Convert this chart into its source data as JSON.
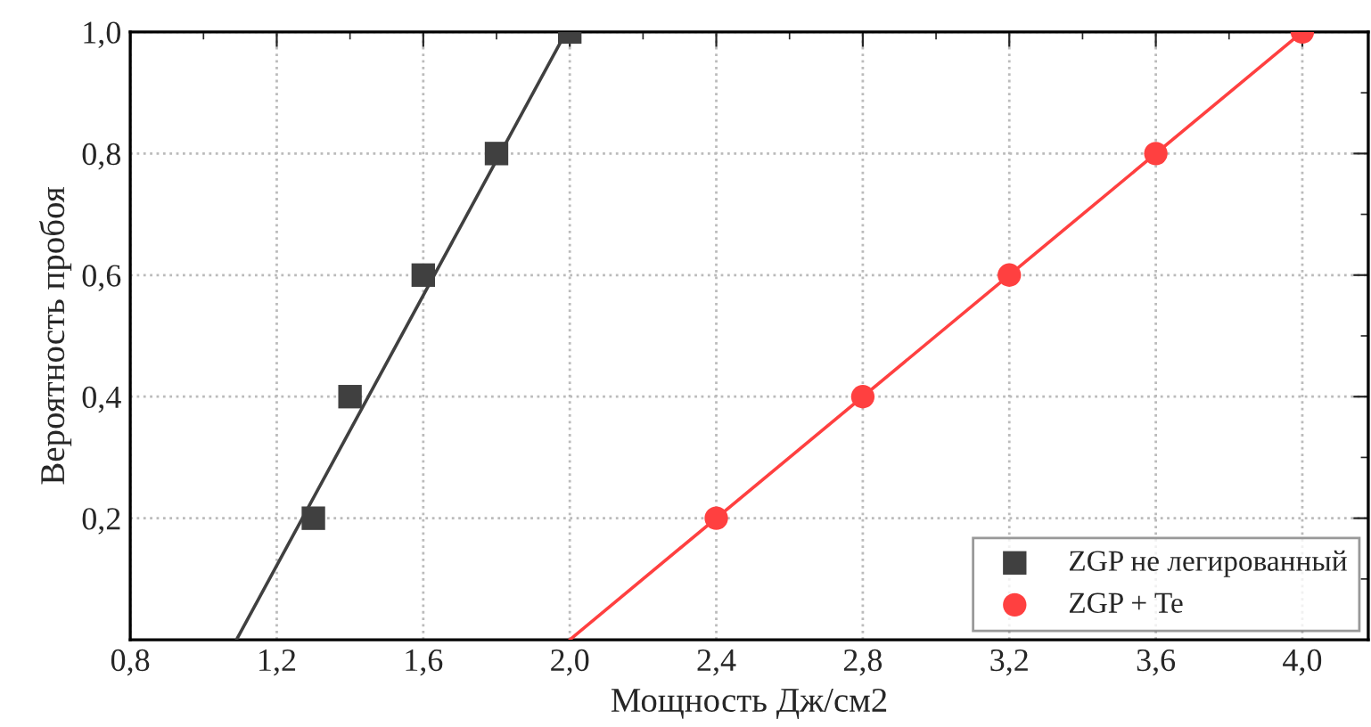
{
  "chart_data": {
    "type": "scatter",
    "xlabel": "Мощность Дж/см2",
    "ylabel": "Вероятность пробоя",
    "xlim": [
      0.8,
      4.18
    ],
    "ylim": [
      0,
      1.0
    ],
    "xticks": [
      {
        "value": 0.8,
        "label": "0,8"
      },
      {
        "value": 1.2,
        "label": "1,2"
      },
      {
        "value": 1.6,
        "label": "1,6"
      },
      {
        "value": 2.0,
        "label": "2,0"
      },
      {
        "value": 2.4,
        "label": "2,4"
      },
      {
        "value": 2.8,
        "label": "2,8"
      },
      {
        "value": 3.2,
        "label": "3,2"
      },
      {
        "value": 3.6,
        "label": "3,6"
      },
      {
        "value": 4.0,
        "label": "4,0"
      }
    ],
    "yticks": [
      {
        "value": 0.2,
        "label": "0,2"
      },
      {
        "value": 0.4,
        "label": "0,4"
      },
      {
        "value": 0.6,
        "label": "0,6"
      },
      {
        "value": 0.8,
        "label": "0,8"
      },
      {
        "value": 1.0,
        "label": "1,0"
      }
    ],
    "grid": true,
    "legend": "bottom right",
    "series": [
      {
        "name": "ZGP не легированный",
        "marker": "square",
        "color": "#404040",
        "x": [
          1.3,
          1.4,
          1.6,
          1.8,
          2.0
        ],
        "values": [
          0.2,
          0.4,
          0.6,
          0.8,
          1.0
        ]
      },
      {
        "name": "ZGP + Te",
        "marker": "circle",
        "color": "#ff4040",
        "x": [
          2.4,
          2.8,
          3.2,
          3.6,
          4.0
        ],
        "values": [
          0.2,
          0.4,
          0.6,
          0.8,
          1.0
        ]
      },
      {
        "type": "line",
        "color": "#404040",
        "line_style": "solid",
        "x": [
          1.09,
          1.99
        ],
        "values": [
          0,
          1.0
        ]
      },
      {
        "type": "line",
        "color": "#ff4040",
        "line_style": "solid",
        "x": [
          2.0,
          4.0
        ],
        "values": [
          0,
          1.0
        ]
      }
    ]
  }
}
